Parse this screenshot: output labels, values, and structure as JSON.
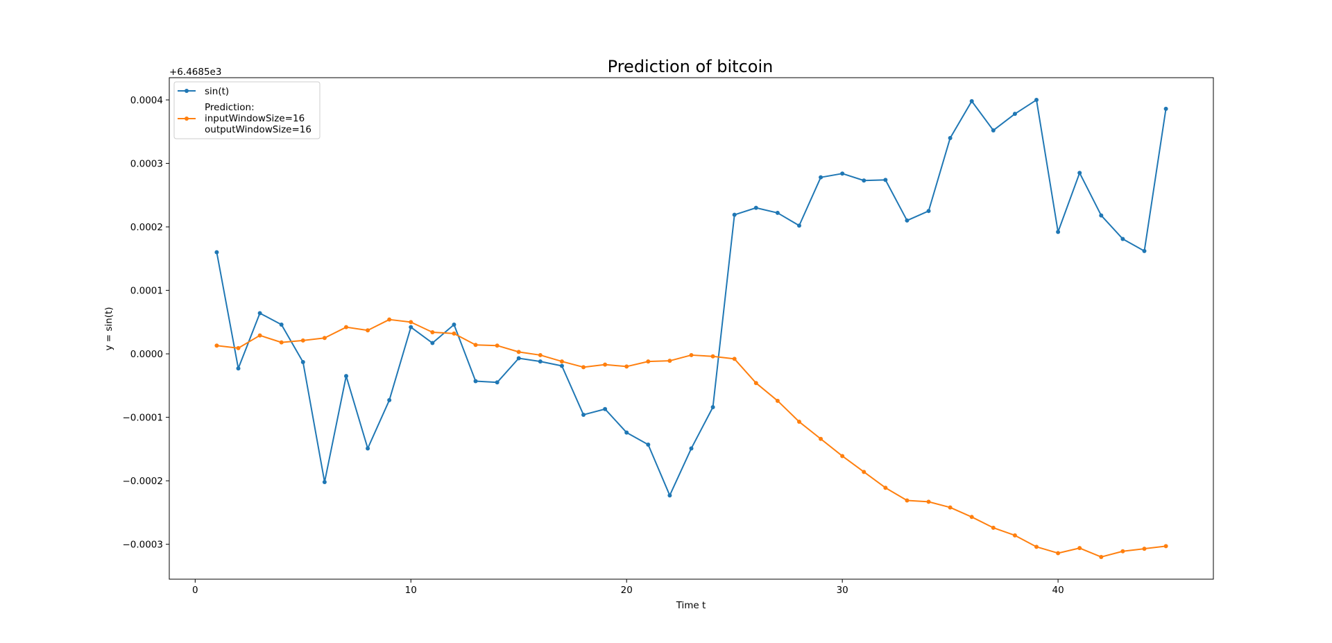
{
  "chart_data": {
    "type": "line",
    "title": "Prediction of bitcoin",
    "xlabel": "Time t",
    "ylabel": "y = sin(t)",
    "offset_label": "+6.4685e3",
    "xlim": [
      -1.2,
      47.2
    ],
    "ylim": [
      -0.000355,
      0.000435
    ],
    "xticks": [
      0,
      10,
      20,
      30,
      40
    ],
    "xtick_labels": [
      "0",
      "10",
      "20",
      "30",
      "40"
    ],
    "yticks": [
      -0.0003,
      -0.0002,
      -0.0001,
      0.0,
      0.0001,
      0.0002,
      0.0003,
      0.0004
    ],
    "ytick_labels": [
      "−0.0003",
      "−0.0002",
      "−0.0001",
      "0.0000",
      "0.0001",
      "0.0002",
      "0.0003",
      "0.0004"
    ],
    "grid": false,
    "legend_position": "top-left",
    "x": [
      1,
      2,
      3,
      4,
      5,
      6,
      7,
      8,
      9,
      10,
      11,
      12,
      13,
      14,
      15,
      16,
      17,
      18,
      19,
      20,
      21,
      22,
      23,
      24,
      25,
      26,
      27,
      28,
      29,
      30,
      31,
      32,
      33,
      34,
      35,
      36,
      37,
      38,
      39,
      40,
      41,
      42,
      43,
      44,
      45
    ],
    "series": [
      {
        "name": "sin(t)",
        "color": "#1f77b4",
        "values": [
          0.00016,
          -2.3e-05,
          6.4e-05,
          4.6e-05,
          -1.3e-05,
          -0.000202,
          -3.5e-05,
          -0.000149,
          -7.3e-05,
          4.2e-05,
          1.7e-05,
          4.6e-05,
          -4.3e-05,
          -4.5e-05,
          -7e-06,
          -1.2e-05,
          -1.9e-05,
          -9.6e-05,
          -8.7e-05,
          -0.000124,
          -0.000143,
          -0.000223,
          -0.000149,
          -8.4e-05,
          0.000219,
          0.00023,
          0.000222,
          0.000202,
          0.000278,
          0.000284,
          0.000273,
          0.000274,
          0.00021,
          0.000225,
          0.00034,
          0.000398,
          0.000352,
          0.000378,
          0.0004,
          0.000192,
          0.000285,
          0.000218,
          0.000181,
          0.000162,
          0.000386
        ]
      },
      {
        "name": "Prediction: inputWindowSize=16 outputWindowSize=16",
        "name_lines": [
          "Prediction:",
          "inputWindowSize=16",
          "outputWindowSize=16"
        ],
        "color": "#ff7f0e",
        "values": [
          1.3e-05,
          9e-06,
          2.9e-05,
          1.8e-05,
          2.1e-05,
          2.5e-05,
          4.2e-05,
          3.7e-05,
          5.4e-05,
          5e-05,
          3.4e-05,
          3.2e-05,
          1.4e-05,
          1.3e-05,
          3e-06,
          -2e-06,
          -1.2e-05,
          -2.1e-05,
          -1.7e-05,
          -2e-05,
          -1.2e-05,
          -1.1e-05,
          -2e-06,
          -4e-06,
          -8e-06,
          -4.6e-05,
          -7.4e-05,
          -0.000107,
          -0.000134,
          -0.000161,
          -0.000186,
          -0.000211,
          -0.000231,
          -0.000233,
          -0.000242,
          -0.000257,
          -0.000274,
          -0.000286,
          -0.000304,
          -0.000314,
          -0.000306,
          -0.00032,
          -0.000311,
          -0.000307,
          -0.000303
        ]
      }
    ]
  }
}
